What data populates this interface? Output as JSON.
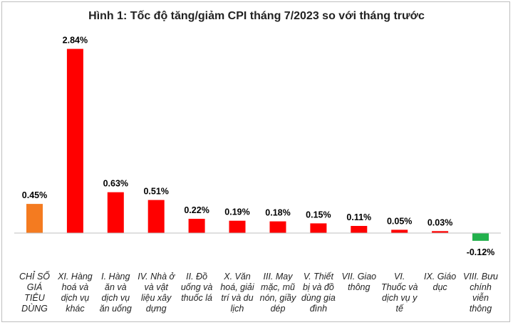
{
  "chart_data": {
    "type": "bar",
    "title": "Hình 1: Tốc độ tăng/giảm CPI tháng 7/2023 so với tháng trước",
    "xlabel": "",
    "ylabel": "",
    "ylim": [
      -0.18,
      3.05
    ],
    "grid": false,
    "legend": "none",
    "categories": [
      [
        "CHỈ SỐ",
        "GIÁ",
        "TIÊU",
        "DÙNG"
      ],
      [
        "XI. Hàng",
        "hoá và",
        "dịch vụ",
        "khác"
      ],
      [
        "I. Hàng",
        "ăn và",
        "dịch vụ",
        "ăn uống"
      ],
      [
        "IV. Nhà ở",
        "và vật",
        "liệu xây",
        "dựng"
      ],
      [
        "II. Đồ",
        "uống và",
        "thuốc lá"
      ],
      [
        "X. Văn",
        "hoá, giải",
        "trí và du",
        "lịch"
      ],
      [
        "III. May",
        "mặc, mũ",
        "nón, giầy",
        "dép"
      ],
      [
        "V. Thiết",
        "bị và đồ",
        "dùng gia",
        "đình"
      ],
      [
        "VII. Giao",
        "thông"
      ],
      [
        "VI.",
        "Thuốc và",
        "dịch vụ y",
        "tế"
      ],
      [
        "IX. Giáo",
        "dục"
      ],
      [
        "VIII. Bưu",
        "chính",
        "viễn",
        "thông"
      ]
    ],
    "values": [
      0.45,
      2.84,
      0.63,
      0.51,
      0.22,
      0.19,
      0.18,
      0.15,
      0.11,
      0.05,
      0.03,
      -0.12
    ],
    "data_labels": [
      "0.45%",
      "2.84%",
      "0.63%",
      "0.51%",
      "0.22%",
      "0.19%",
      "0.18%",
      "0.15%",
      "0.11%",
      "0.05%",
      "0.03%",
      "-0.12%"
    ],
    "colors": {
      "total": "#F47B20",
      "increase": "#FF0000",
      "decrease": "#22B14C",
      "axis": "#bfbfbf",
      "frame": "#bfbfbf",
      "text": "#222222"
    }
  }
}
